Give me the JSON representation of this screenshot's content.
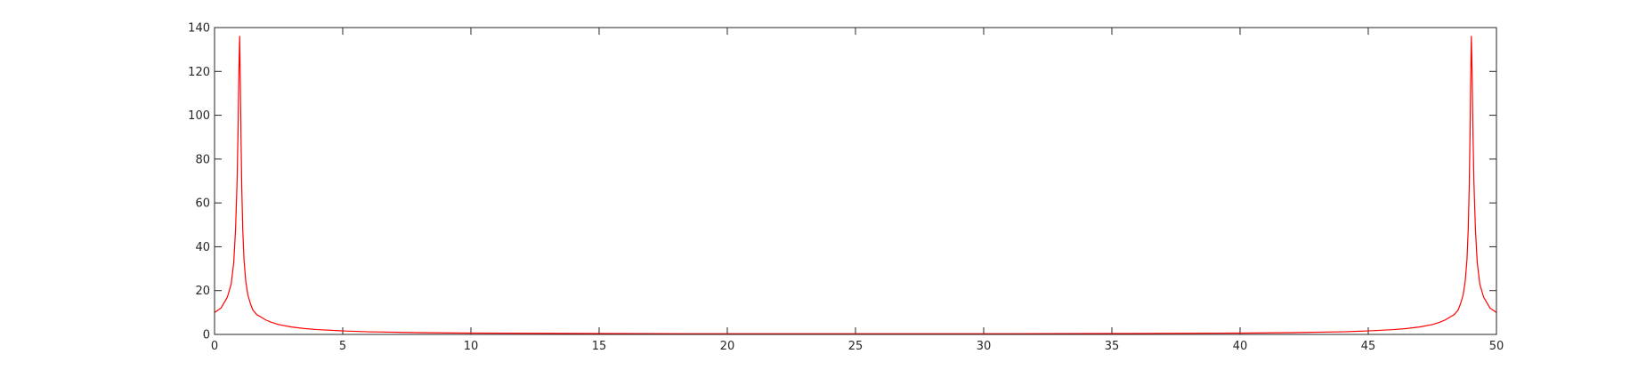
{
  "chart_data": {
    "type": "line",
    "title": "",
    "xlabel": "",
    "ylabel": "",
    "xlim": [
      0,
      50
    ],
    "ylim": [
      0,
      140
    ],
    "xticks": [
      0,
      5,
      10,
      15,
      20,
      25,
      30,
      35,
      40,
      45,
      50
    ],
    "yticks": [
      0,
      20,
      40,
      60,
      80,
      100,
      120,
      140
    ],
    "grid": false,
    "legend": "none",
    "series": [
      {
        "color": "#ff0000",
        "x": [
          0,
          0.25,
          0.5,
          0.65,
          0.75,
          0.82,
          0.88,
          0.92,
          0.95,
          0.98,
          1.0,
          1.03,
          1.06,
          1.1,
          1.15,
          1.22,
          1.3,
          1.4,
          1.5,
          1.65,
          1.8,
          2.0,
          2.2,
          2.5,
          3.0,
          3.5,
          4.0,
          5.0,
          6.0,
          8.0,
          10.0,
          15.0,
          20.0,
          25.0,
          30.0,
          35.0,
          40.0,
          42.0,
          44.0,
          45.0,
          46.0,
          46.5,
          47.0,
          47.5,
          47.8,
          48.0,
          48.2,
          48.35,
          48.5,
          48.6,
          48.7,
          48.78,
          48.85,
          48.9,
          48.94,
          48.97,
          49.0,
          49.02,
          49.05,
          49.08,
          49.12,
          49.18,
          49.25,
          49.35,
          49.5,
          49.75,
          50.0
        ],
        "y": [
          10,
          12,
          17,
          23,
          33,
          48,
          70,
          95,
          120,
          136,
          120,
          92,
          68,
          48,
          34,
          24,
          18,
          14,
          11,
          9,
          8,
          6.6,
          5.6,
          4.5,
          3.4,
          2.7,
          2.2,
          1.6,
          1.2,
          0.8,
          0.6,
          0.4,
          0.3,
          0.3,
          0.3,
          0.4,
          0.6,
          0.8,
          1.2,
          1.6,
          2.2,
          2.7,
          3.4,
          4.5,
          5.6,
          6.6,
          8,
          9,
          11,
          14,
          18,
          24,
          34,
          48,
          68,
          92,
          120,
          136,
          120,
          95,
          70,
          48,
          33,
          23,
          17,
          12,
          10
        ]
      }
    ]
  }
}
